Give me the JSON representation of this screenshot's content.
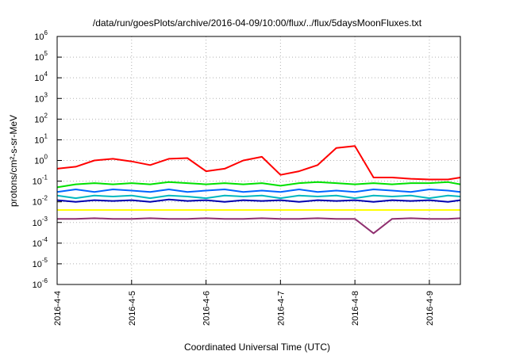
{
  "chart_data": {
    "type": "line",
    "title": "/data/run/goesPlots/archive/2016-04-09/10:00/flux/../flux/5daysMoonFluxes.txt",
    "xlabel": "Coordinated Universal Time (UTC)",
    "ylabel": "protons/cm²-s-sr-MeV",
    "yscale": "log",
    "ylim": [
      1e-06,
      1000000.0
    ],
    "xlim": [
      "2016-04-04 00:00",
      "2016-04-09 10:00"
    ],
    "grid": true,
    "x_ticks": [
      "2016-4-4",
      "2016-4-5",
      "2016-4-6",
      "2016-4-7",
      "2016-4-8",
      "2016-4-9"
    ],
    "y_ticks": [
      {
        "base": "10",
        "exp": "-6"
      },
      {
        "base": "10",
        "exp": "-5"
      },
      {
        "base": "10",
        "exp": "-4"
      },
      {
        "base": "10",
        "exp": "-3"
      },
      {
        "base": "10",
        "exp": "-2"
      },
      {
        "base": "10",
        "exp": "-1"
      },
      {
        "base": "10",
        "exp": "0"
      },
      {
        "base": "10",
        "exp": "1"
      },
      {
        "base": "10",
        "exp": "2"
      },
      {
        "base": "10",
        "exp": "3"
      },
      {
        "base": "10",
        "exp": "4"
      },
      {
        "base": "10",
        "exp": "5"
      },
      {
        "base": "10",
        "exp": "6"
      }
    ],
    "x": [
      "2016-04-04 00:00",
      "2016-04-04 06:00",
      "2016-04-04 12:00",
      "2016-04-04 18:00",
      "2016-04-05 00:00",
      "2016-04-05 06:00",
      "2016-04-05 12:00",
      "2016-04-05 18:00",
      "2016-04-06 00:00",
      "2016-04-06 06:00",
      "2016-04-06 12:00",
      "2016-04-06 18:00",
      "2016-04-07 00:00",
      "2016-04-07 06:00",
      "2016-04-07 12:00",
      "2016-04-07 18:00",
      "2016-04-08 00:00",
      "2016-04-08 06:00",
      "2016-04-08 12:00",
      "2016-04-08 18:00",
      "2016-04-09 00:00",
      "2016-04-09 06:00",
      "2016-04-09 10:00"
    ],
    "series": [
      {
        "color": "#ff0000",
        "values": [
          0.4,
          0.5,
          1.0,
          1.2,
          0.9,
          0.6,
          1.2,
          1.3,
          0.3,
          0.4,
          1.0,
          1.5,
          0.2,
          0.3,
          0.6,
          4.0,
          5.0,
          0.15,
          0.15,
          0.13,
          0.12,
          0.12,
          0.15
        ]
      },
      {
        "color": "#00e000",
        "values": [
          0.05,
          0.07,
          0.08,
          0.07,
          0.08,
          0.07,
          0.09,
          0.08,
          0.07,
          0.08,
          0.07,
          0.08,
          0.06,
          0.08,
          0.09,
          0.08,
          0.07,
          0.08,
          0.07,
          0.08,
          0.08,
          0.09,
          0.07
        ]
      },
      {
        "color": "#0066ff",
        "values": [
          0.03,
          0.04,
          0.03,
          0.04,
          0.035,
          0.03,
          0.04,
          0.03,
          0.035,
          0.04,
          0.03,
          0.035,
          0.03,
          0.04,
          0.03,
          0.035,
          0.03,
          0.04,
          0.035,
          0.03,
          0.04,
          0.035,
          0.03
        ]
      },
      {
        "color": "#00b8c0",
        "values": [
          0.02,
          0.015,
          0.02,
          0.018,
          0.02,
          0.015,
          0.02,
          0.018,
          0.015,
          0.02,
          0.018,
          0.02,
          0.015,
          0.02,
          0.018,
          0.02,
          0.015,
          0.02,
          0.018,
          0.02,
          0.015,
          0.02,
          0.018
        ]
      },
      {
        "color": "#0000b0",
        "values": [
          0.012,
          0.01,
          0.012,
          0.011,
          0.012,
          0.01,
          0.013,
          0.011,
          0.012,
          0.01,
          0.012,
          0.011,
          0.012,
          0.01,
          0.012,
          0.011,
          0.012,
          0.01,
          0.012,
          0.011,
          0.012,
          0.01,
          0.012
        ]
      },
      {
        "color": "#ffff00",
        "values": [
          0.004,
          0.004,
          0.004,
          0.004,
          0.004,
          0.004,
          0.004,
          0.004,
          0.004,
          0.004,
          0.004,
          0.004,
          0.004,
          0.004,
          0.004,
          0.004,
          0.004,
          0.004,
          0.004,
          0.004,
          0.004,
          0.004,
          0.004
        ]
      },
      {
        "color": "#903070",
        "values": [
          0.0015,
          0.0015,
          0.0016,
          0.0015,
          0.0015,
          0.0016,
          0.0015,
          0.0015,
          0.0016,
          0.0015,
          0.0015,
          0.0016,
          0.0015,
          0.0015,
          0.0016,
          0.0015,
          0.0015,
          0.0003,
          0.0015,
          0.0016,
          0.0015,
          0.0015,
          0.0016
        ]
      }
    ]
  }
}
